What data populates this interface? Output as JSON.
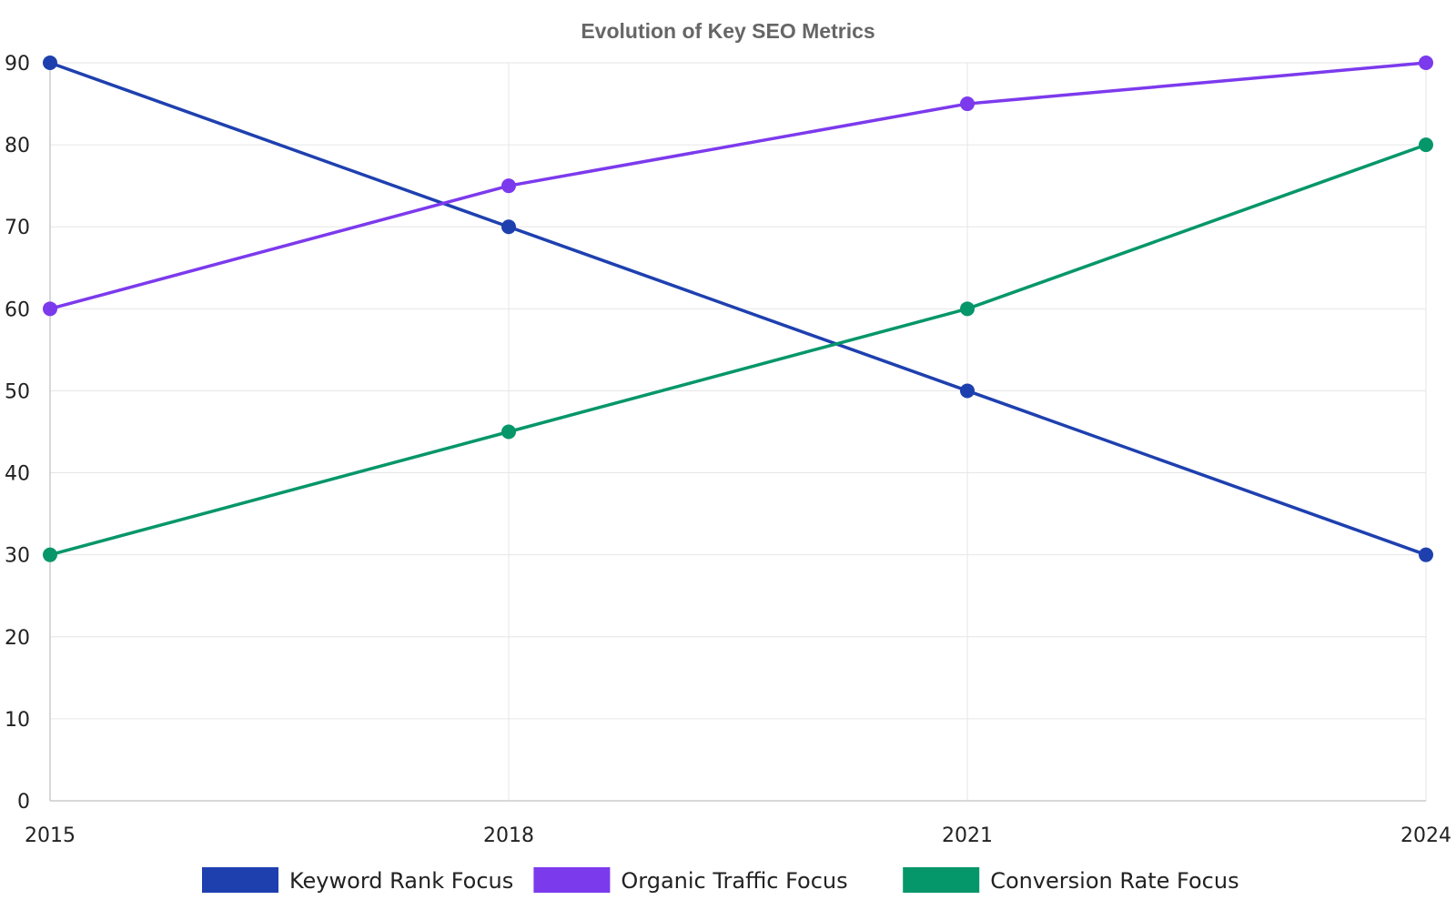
{
  "chart_data": {
    "type": "line",
    "title": "Evolution of Key SEO Metrics",
    "xlabel": "",
    "ylabel": "",
    "x": [
      2015,
      2018,
      2021,
      2024
    ],
    "x_tick_labels": [
      "2015",
      "2018",
      "2021",
      "2024"
    ],
    "ylim": [
      0,
      90
    ],
    "y_ticks": [
      0,
      10,
      20,
      30,
      40,
      50,
      60,
      70,
      80,
      90
    ],
    "grid": true,
    "legend_position": "bottom-center",
    "series": [
      {
        "name": "Keyword Rank Focus",
        "color": "#1e40af",
        "values": [
          90,
          70,
          50,
          30
        ]
      },
      {
        "name": "Organic Traffic Focus",
        "color": "#7c3aed",
        "values": [
          60,
          75,
          85,
          90
        ]
      },
      {
        "name": "Conversion Rate Focus",
        "color": "#059669",
        "values": [
          30,
          45,
          60,
          80
        ]
      }
    ]
  }
}
